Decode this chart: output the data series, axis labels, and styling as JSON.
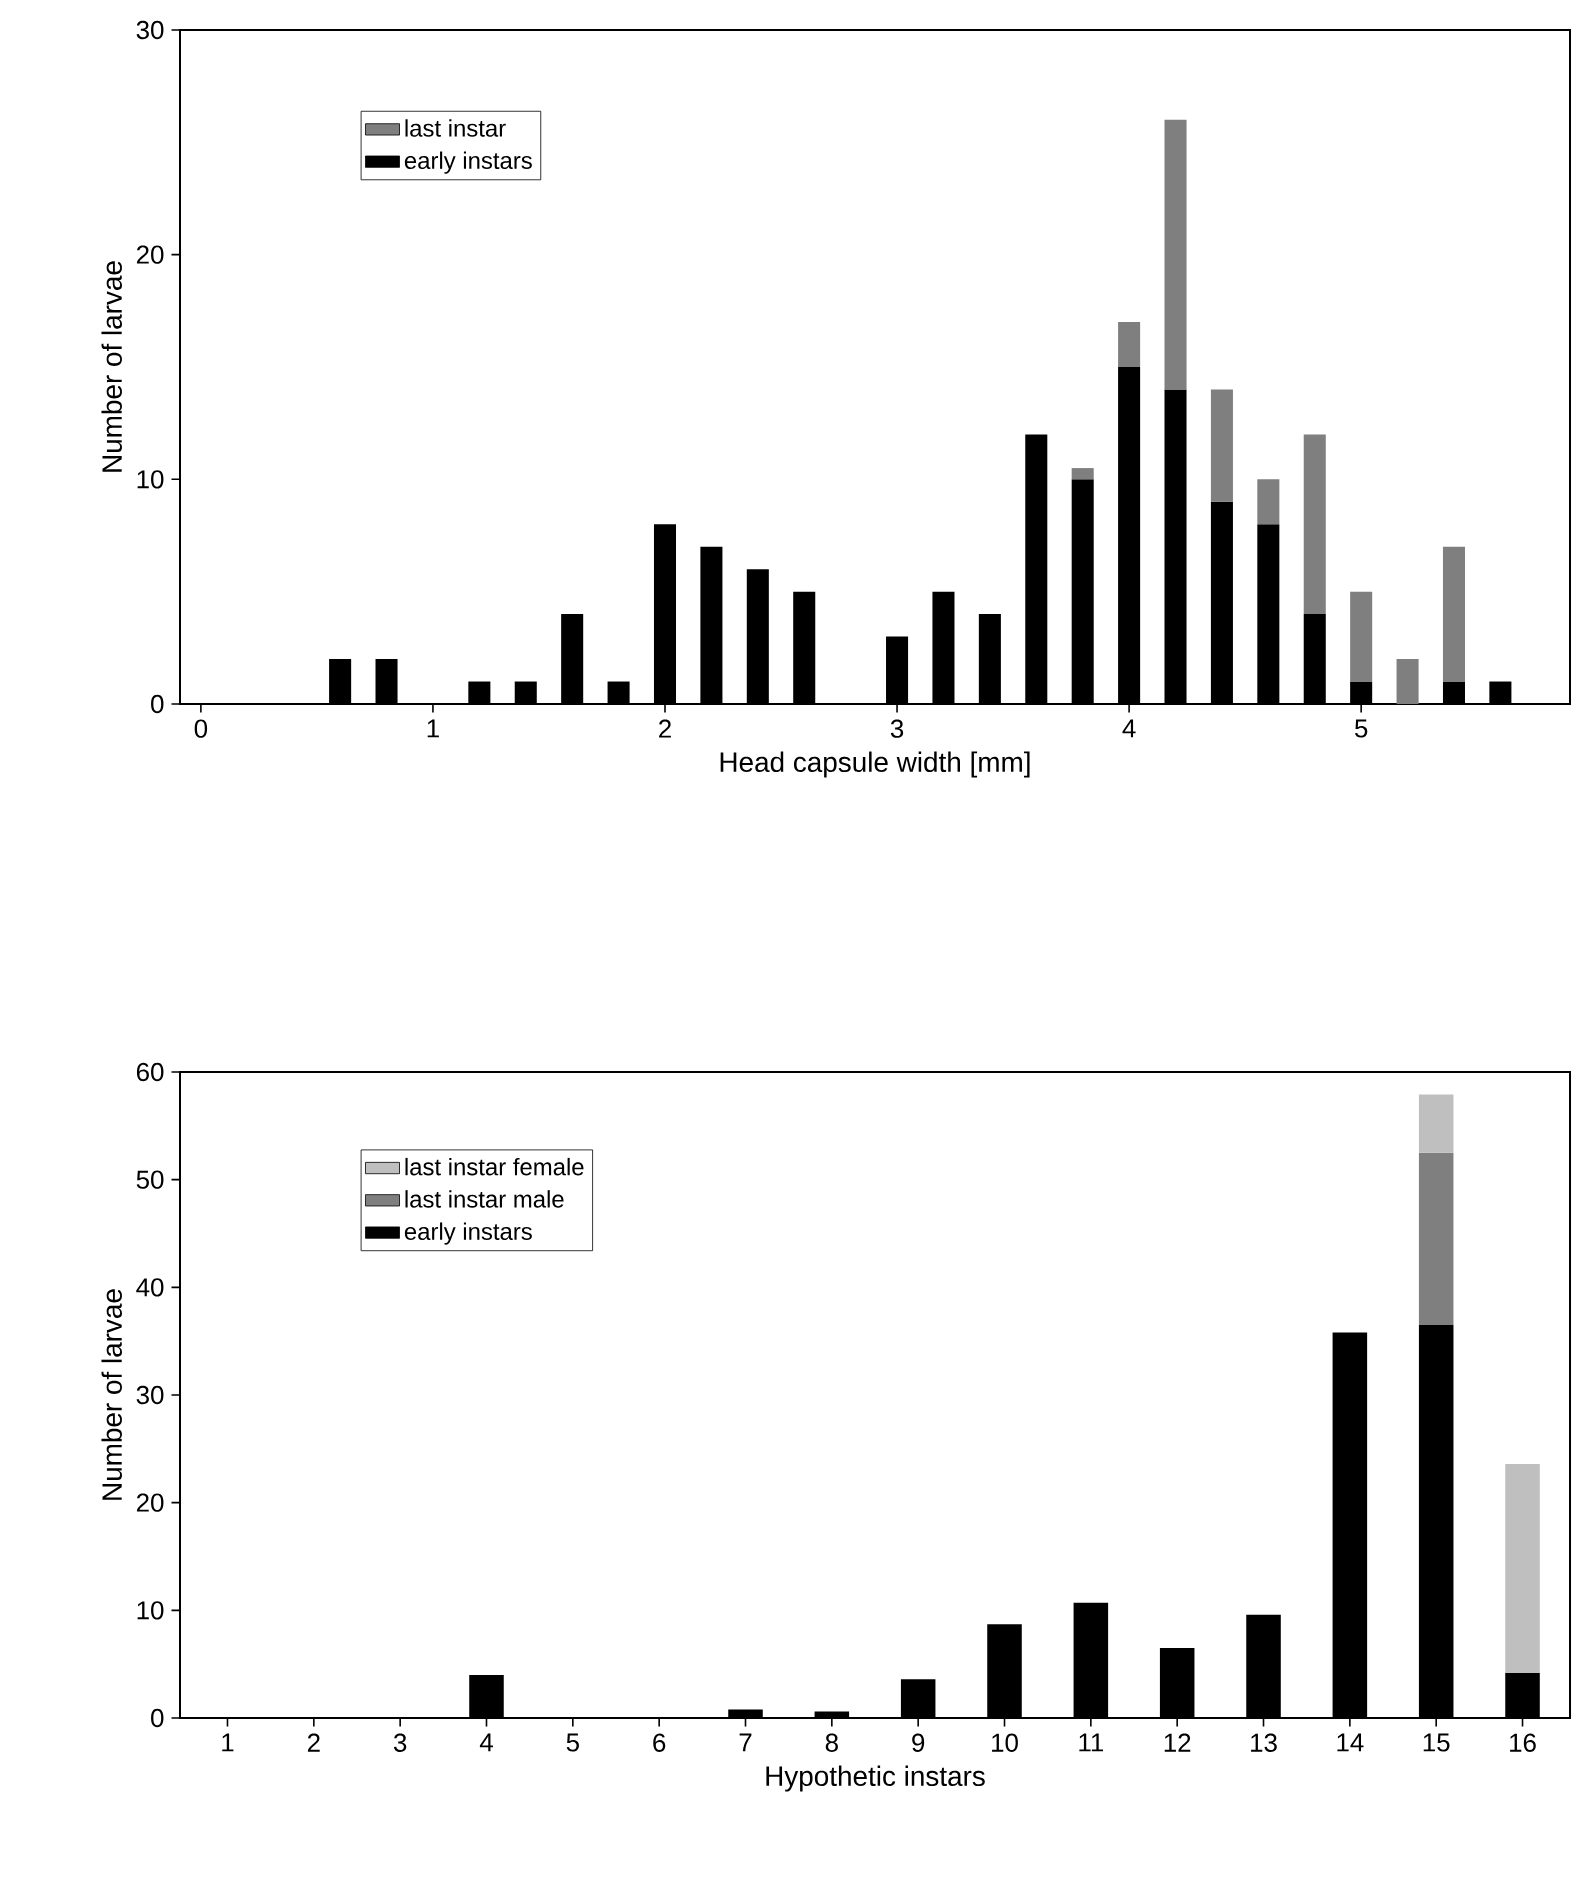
{
  "chart_data": [
    {
      "type": "bar",
      "stacked": true,
      "xlabel": "Head capsule width [mm]",
      "ylabel": "Number of larvae",
      "x": [
        0.6,
        0.8,
        1.2,
        1.4,
        1.6,
        1.8,
        2.0,
        2.2,
        2.4,
        2.6,
        3.0,
        3.2,
        3.4,
        3.6,
        3.8,
        4.0,
        4.2,
        4.4,
        4.6,
        4.8,
        5.0,
        5.2,
        5.4,
        5.6
      ],
      "series": [
        {
          "name": "early instars",
          "color": "#000000",
          "values": [
            2,
            2,
            1,
            1,
            4,
            1,
            8,
            7,
            6,
            5,
            3,
            5,
            4,
            12,
            10,
            15,
            14,
            9,
            8,
            4,
            1,
            null,
            1,
            1
          ]
        },
        {
          "name": "last instar",
          "color": "#7f7f7f",
          "values": [
            null,
            null,
            null,
            null,
            null,
            null,
            null,
            null,
            null,
            null,
            null,
            null,
            null,
            null,
            0.5,
            2,
            12,
            5,
            2,
            8,
            4,
            2,
            6,
            null
          ]
        }
      ],
      "xlim": [
        -0.09,
        5.9
      ],
      "xticks": [
        0,
        1,
        2,
        3,
        4,
        5
      ],
      "ylim": [
        0,
        30
      ],
      "yticks": [
        0,
        10,
        20,
        30
      ],
      "legend": "top left",
      "grid": false
    },
    {
      "type": "bar",
      "stacked": true,
      "xlabel": "Hypothetic instars",
      "ylabel": "Number of larvae",
      "categories": [
        "1",
        "2",
        "3",
        "4",
        "5",
        "6",
        "7",
        "8",
        "9",
        "10",
        "11",
        "12",
        "13",
        "14",
        "15",
        "16"
      ],
      "series": [
        {
          "name": "early instars",
          "color": "#000000",
          "values": [
            0,
            0,
            0,
            4,
            0,
            0,
            0.8,
            0.6,
            3.6,
            8.7,
            10.7,
            6.5,
            9.6,
            35.8,
            36.5,
            4.2
          ]
        },
        {
          "name": "last instar male",
          "color": "#7f7f7f",
          "values": [
            null,
            null,
            null,
            null,
            null,
            null,
            null,
            null,
            null,
            null,
            null,
            null,
            null,
            null,
            16,
            null
          ]
        },
        {
          "name": "last instar female",
          "color": "#bfbfbf",
          "values": [
            null,
            null,
            null,
            null,
            null,
            null,
            null,
            null,
            null,
            null,
            null,
            null,
            null,
            null,
            5.4,
            19.4
          ]
        }
      ],
      "ylim": [
        0,
        60
      ],
      "yticks": [
        0,
        10,
        20,
        30,
        40,
        50,
        60
      ],
      "legend": "top left",
      "grid": false
    }
  ]
}
